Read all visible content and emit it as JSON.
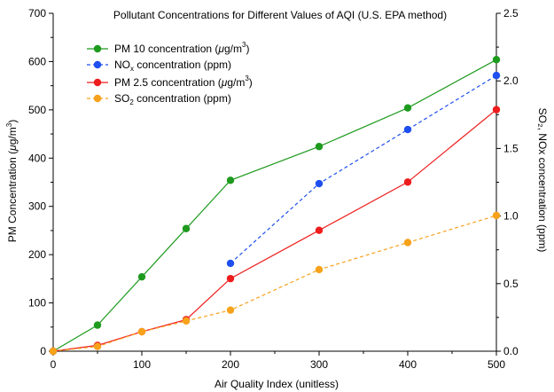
{
  "chart_data": {
    "type": "line",
    "title": "Pollutant Concentrations for Different Values of AQI (U.S. EPA method)",
    "xlabel": "Air Quality Index (unitless)",
    "ylabel_left_main": "PM Concentration (",
    "ylabel_left_mu": "μ",
    "ylabel_left_unit": "g/m",
    "ylabel_left_sup": "3",
    "ylabel_left_close": ")",
    "ylabel_right": "SO₂, NOx concentration (ppm)",
    "xlim": [
      0,
      500
    ],
    "ylim_left": [
      0,
      700
    ],
    "ylim_right": [
      0,
      2.5
    ],
    "x_ticks": [
      "0",
      "100",
      "200",
      "300",
      "400",
      "500"
    ],
    "y_left_ticks": [
      "0",
      "100",
      "200",
      "300",
      "400",
      "500",
      "600",
      "700"
    ],
    "y_right_ticks": [
      "0.0",
      "0.5",
      "1.0",
      "1.5",
      "2.0",
      "2.5"
    ],
    "legend_position": "top-left",
    "series": [
      {
        "name": "PM 10 concentration (μg/m³)",
        "legend": {
          "main": "PM 10 concentration (",
          "mu": "μ",
          "unit": "g/m",
          "sup": "3",
          "close": ")"
        },
        "axis": "left",
        "color": "#1e9a1e",
        "dashed": false,
        "x": [
          0,
          50,
          100,
          150,
          200,
          300,
          400,
          500
        ],
        "y": [
          0,
          54,
          154,
          254,
          354,
          424,
          504,
          604
        ]
      },
      {
        "name": "NOₓ concentration (ppm)",
        "legend": {
          "main": "NO",
          "sub": "x",
          "rest": " concentration (ppm)"
        },
        "axis": "right",
        "color": "#1f4ff0",
        "dashed": true,
        "x": [
          200,
          300,
          400,
          500
        ],
        "y": [
          0.65,
          1.24,
          1.64,
          2.04
        ]
      },
      {
        "name": "PM 2.5 concentration (μg/m³)",
        "legend": {
          "main": "PM 2.5 concentration (",
          "mu": "μ",
          "unit": "g/m",
          "sup": "3",
          "close": ")"
        },
        "axis": "left",
        "color": "#ee1c1c",
        "dashed": false,
        "x": [
          0,
          50,
          100,
          150,
          200,
          300,
          400,
          500
        ],
        "y": [
          0,
          12.1,
          40.4,
          65.4,
          150.4,
          250.4,
          350.4,
          500.4
        ]
      },
      {
        "name": "SO₂ concentration (ppm)",
        "legend": {
          "main": "SO",
          "sub": "2",
          "rest": " concentration (ppm)"
        },
        "axis": "right",
        "color": "#f7a21b",
        "dashed": true,
        "x": [
          0,
          50,
          100,
          150,
          200,
          300,
          400,
          500
        ],
        "y": [
          0,
          0.035,
          0.144,
          0.224,
          0.304,
          0.604,
          0.804,
          1.004
        ]
      }
    ]
  }
}
